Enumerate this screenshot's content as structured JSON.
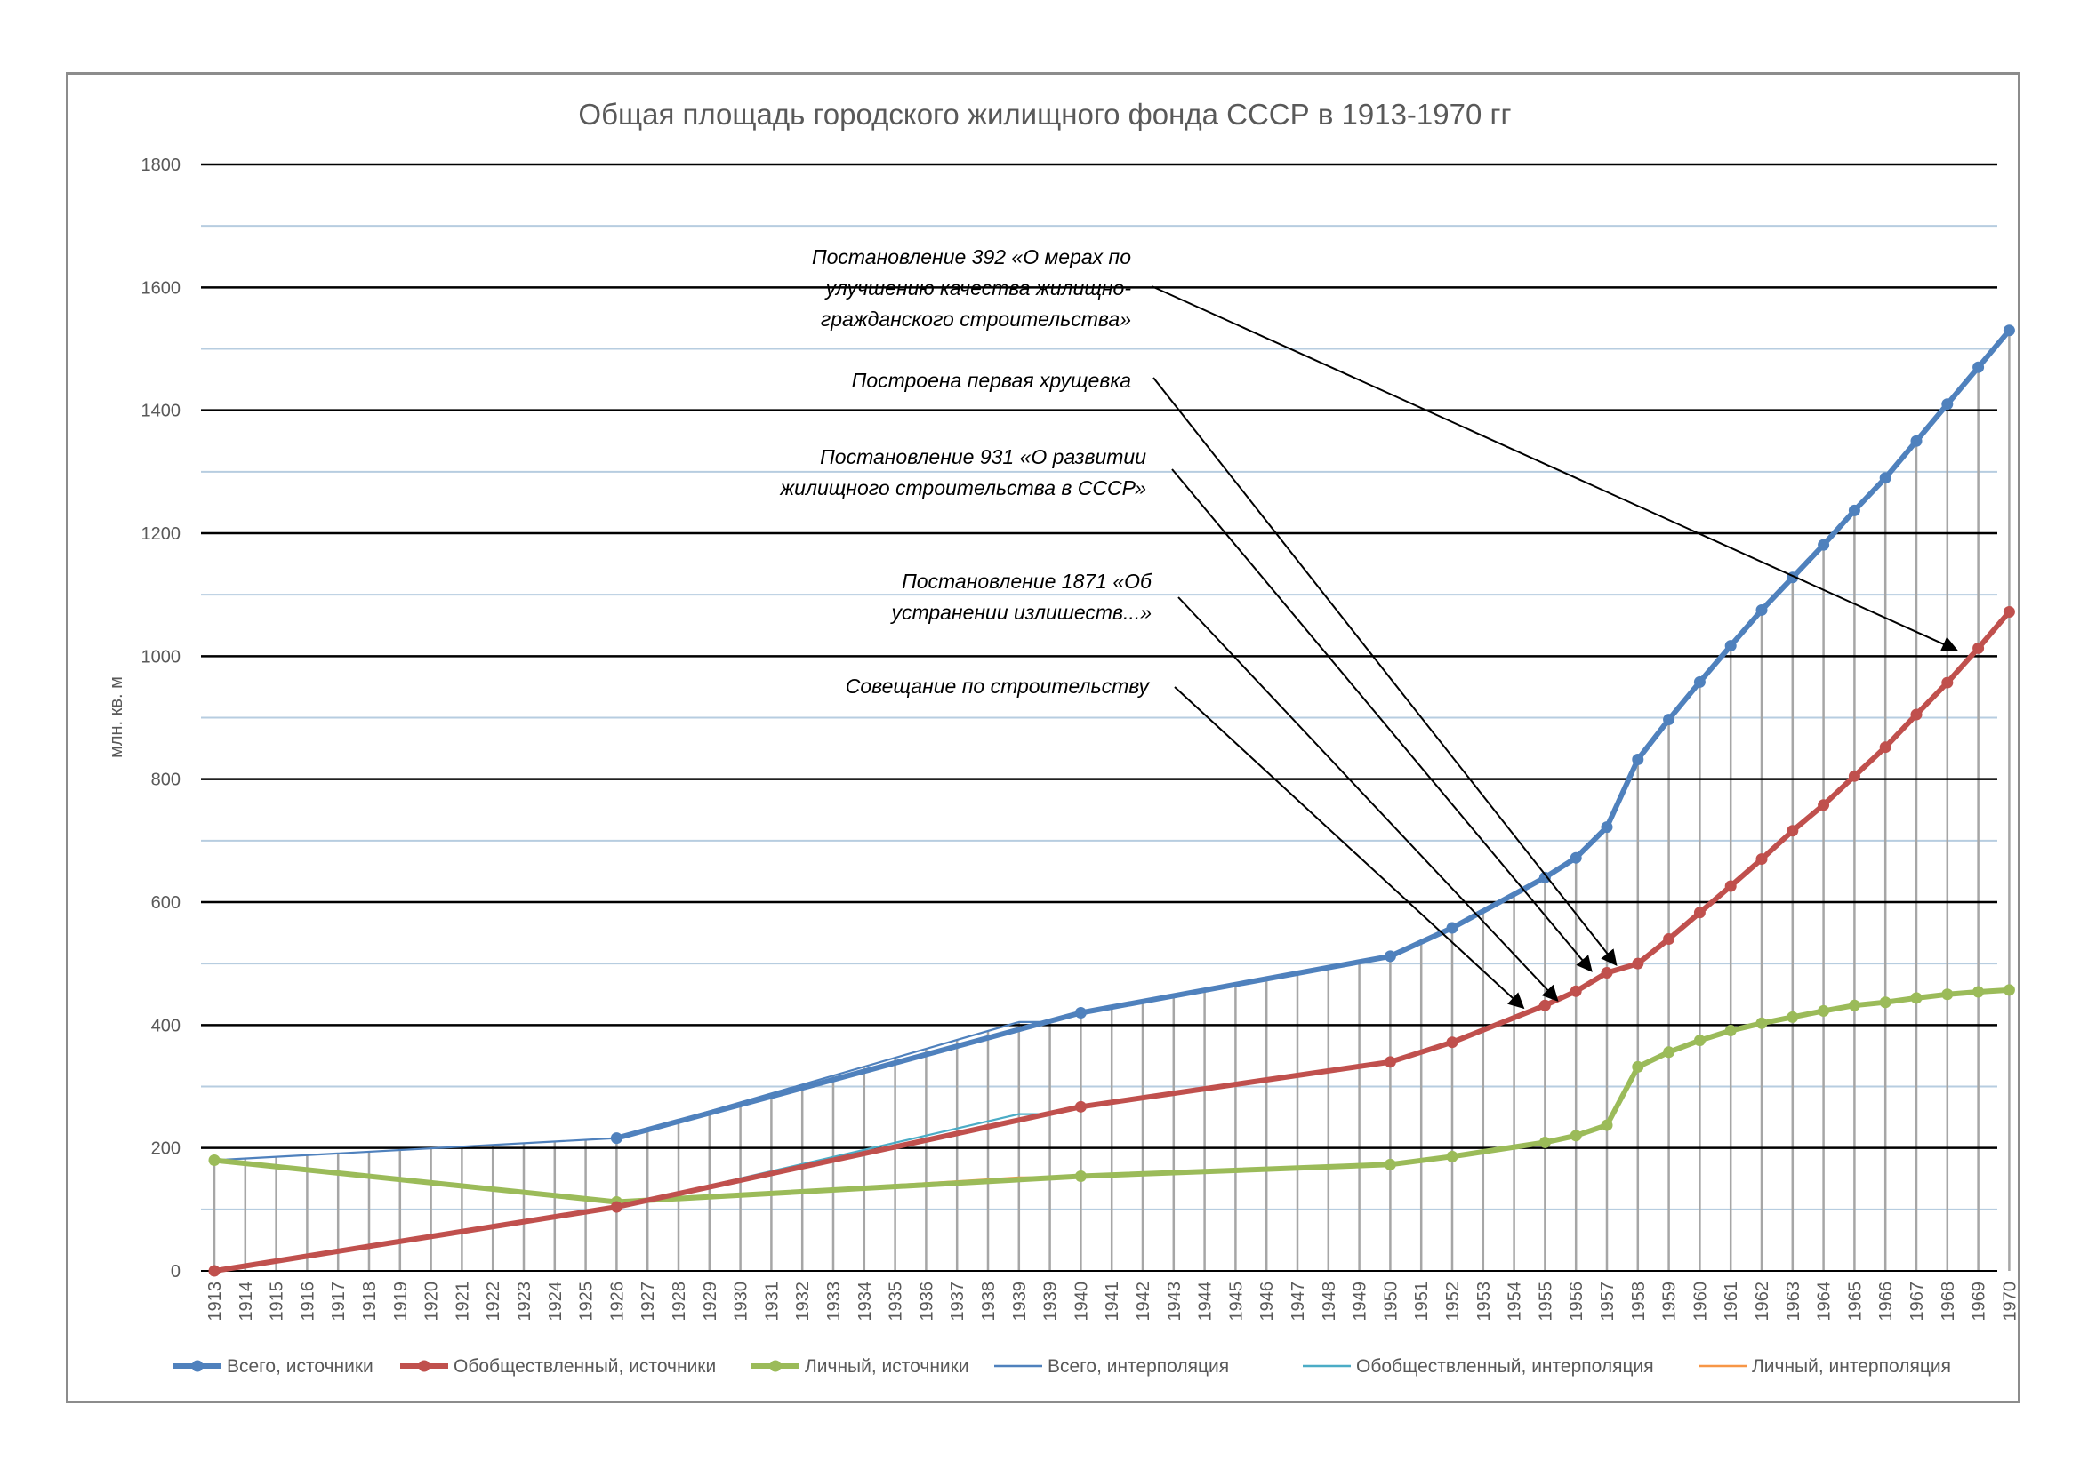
{
  "chart_data": {
    "type": "line",
    "title": "Общая площадь городского жилищного фонда СССР в 1913-1970 гг",
    "ylabel": "млн. кв. м",
    "xlabel": "",
    "ylim": [
      0,
      1800
    ],
    "yticks": [
      0,
      200,
      400,
      600,
      800,
      1000,
      1200,
      1400,
      1600,
      1800
    ],
    "minor_gridlines": [
      100,
      300,
      500,
      700,
      900,
      1100,
      1300,
      1500,
      1700
    ],
    "grid": true,
    "legend_position": "bottom",
    "categories": [
      "1913",
      "1914",
      "1915",
      "1916",
      "1917",
      "1918",
      "1919",
      "1920",
      "1921",
      "1922",
      "1923",
      "1924",
      "1925",
      "1926",
      "1927",
      "1928",
      "1929",
      "1930",
      "1931",
      "1932",
      "1933",
      "1934",
      "1935",
      "1936",
      "1937",
      "1938",
      "1939",
      "1939",
      "1940",
      "1941",
      "1942",
      "1943",
      "1944",
      "1945",
      "1946",
      "1947",
      "1948",
      "1949",
      "1950",
      "1951",
      "1952",
      "1953",
      "1954",
      "1955",
      "1956",
      "1957",
      "1958",
      "1959",
      "1960",
      "1961",
      "1962",
      "1963",
      "1964",
      "1965",
      "1966",
      "1967",
      "1968",
      "1969",
      "1970"
    ],
    "series": [
      {
        "name": "Всего, источники",
        "style": "thick-marker",
        "color": "#4f81bd",
        "points": [
          [
            13,
            216
          ],
          [
            28,
            420
          ],
          [
            38,
            512
          ],
          [
            40,
            558
          ],
          [
            43,
            640
          ],
          [
            44,
            672
          ],
          [
            45,
            722
          ],
          [
            46,
            832
          ],
          [
            47,
            897
          ],
          [
            48,
            958
          ],
          [
            49,
            1017
          ],
          [
            50,
            1075
          ],
          [
            51,
            1128
          ],
          [
            52,
            1181
          ],
          [
            53,
            1237
          ],
          [
            54,
            1290
          ],
          [
            55,
            1350
          ],
          [
            56,
            1410
          ],
          [
            57,
            1470
          ],
          [
            58,
            1530
          ]
        ]
      },
      {
        "name": "Обобществленный, источники",
        "style": "thick-marker",
        "color": "#c0504d",
        "points": [
          [
            0,
            0
          ],
          [
            13,
            104
          ],
          [
            28,
            267
          ],
          [
            38,
            340
          ],
          [
            40,
            372
          ],
          [
            43,
            432
          ],
          [
            44,
            455
          ],
          [
            45,
            485
          ],
          [
            46,
            500
          ],
          [
            47,
            540
          ],
          [
            48,
            583
          ],
          [
            49,
            626
          ],
          [
            50,
            670
          ],
          [
            51,
            716
          ],
          [
            52,
            758
          ],
          [
            53,
            805
          ],
          [
            54,
            852
          ],
          [
            55,
            905
          ],
          [
            56,
            957
          ],
          [
            57,
            1013
          ],
          [
            58,
            1072
          ]
        ]
      },
      {
        "name": "Личный, источники",
        "style": "thick-marker",
        "color": "#9bbb59",
        "points": [
          [
            0,
            180
          ],
          [
            13,
            112
          ],
          [
            28,
            154
          ],
          [
            38,
            173
          ],
          [
            40,
            186
          ],
          [
            43,
            209
          ],
          [
            44,
            220
          ],
          [
            45,
            237
          ],
          [
            46,
            332
          ],
          [
            47,
            356
          ],
          [
            48,
            375
          ],
          [
            49,
            391
          ],
          [
            50,
            403
          ],
          [
            51,
            413
          ],
          [
            52,
            423
          ],
          [
            53,
            432
          ],
          [
            54,
            437
          ],
          [
            55,
            444
          ],
          [
            56,
            450
          ],
          [
            57,
            454
          ],
          [
            58,
            457
          ]
        ]
      },
      {
        "name": "Всего, интерполяция",
        "style": "thin",
        "color": "#4f81bd",
        "points": [
          [
            0,
            180
          ],
          [
            13,
            216
          ],
          [
            26,
            405
          ],
          [
            27,
            405
          ],
          [
            28,
            420
          ],
          [
            38,
            512
          ],
          [
            40,
            558
          ],
          [
            43,
            640
          ]
        ]
      },
      {
        "name": "Обобществленный, интерполяция",
        "style": "thin",
        "color": "#4bacc6",
        "points": [
          [
            0,
            0
          ],
          [
            13,
            104
          ],
          [
            26,
            255
          ],
          [
            27,
            255
          ],
          [
            28,
            267
          ],
          [
            38,
            340
          ],
          [
            40,
            372
          ],
          [
            43,
            432
          ]
        ]
      },
      {
        "name": "Личный, интерполяция",
        "style": "thin",
        "color": "#f79646",
        "points": [
          [
            0,
            180
          ],
          [
            13,
            112
          ],
          [
            26,
            152
          ],
          [
            27,
            152
          ],
          [
            28,
            154
          ],
          [
            38,
            173
          ],
          [
            40,
            186
          ],
          [
            43,
            209
          ]
        ]
      }
    ],
    "annotations": [
      {
        "lines": [
          "Постановление 392 «О мерах по",
          "улучшению качества жилищно-",
          "гражданского строительства»"
        ],
        "target_index": 56.3,
        "target_value": 1010
      },
      {
        "lines": [
          "Построена первая хрущевка"
        ],
        "target_index": 45.3,
        "target_value": 498
      },
      {
        "lines": [
          "Постановление 931 «О развитии",
          "жилищного строительства в СССР»"
        ],
        "target_index": 44.5,
        "target_value": 488
      },
      {
        "lines": [
          "Постановление 1871 «Об",
          "устранении излишеств...»"
        ],
        "target_index": 43.4,
        "target_value": 440
      },
      {
        "lines": [
          "Совещание по строительству"
        ],
        "target_index": 42.3,
        "target_value": 428
      }
    ]
  }
}
